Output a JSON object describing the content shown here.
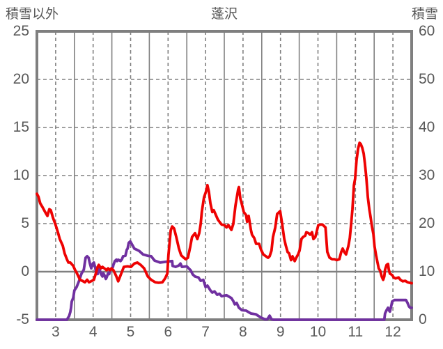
{
  "title": "蓬沢",
  "left_axis_label": "積雪以外",
  "right_axis_label": "積雪",
  "colors": {
    "series_other": "#ee0202",
    "series_snow": "#7030a0",
    "grid": "#808080",
    "border": "#7f7f7f",
    "zero_line": "#808080",
    "text": "#595959",
    "background": "#ffffff"
  },
  "chart_data": {
    "type": "line",
    "title": "蓬沢",
    "x_axis": {
      "range": [
        3,
        13
      ],
      "tick_months": [
        3,
        4,
        5,
        6,
        7,
        8,
        9,
        10,
        11,
        12
      ],
      "tick_labels": [
        "3",
        "4",
        "5",
        "6",
        "7",
        "8",
        "9",
        "10",
        "11",
        "12"
      ],
      "solid_gridlines_at_month_starts": [
        4,
        5,
        6,
        7,
        8,
        9,
        10,
        11,
        12
      ],
      "dashed_gridlines_at_mid_months": [
        3.5,
        4.5,
        5.5,
        6.5,
        7.5,
        8.5,
        9.5,
        10.5,
        11.5,
        12.5
      ]
    },
    "left_axis": {
      "label": "積雪以外",
      "range": [
        -5,
        25
      ],
      "tick_step": 5,
      "tick_labels": [
        "25",
        "20",
        "15",
        "10",
        "5",
        "0",
        "-5"
      ],
      "zero_line": true
    },
    "right_axis": {
      "label": "積雪",
      "range": [
        0,
        60
      ],
      "tick_step": 10,
      "tick_labels": [
        "60",
        "50",
        "40",
        "30",
        "20",
        "10",
        "0"
      ]
    },
    "grid": {
      "horizontal_dashed_at_left_values": [
        20,
        15,
        10,
        5
      ],
      "legend": "none"
    },
    "series": [
      {
        "name": "積雪",
        "axis": "right",
        "color": "#7030a0",
        "points": [
          [
            3.0,
            0
          ],
          [
            3.8,
            0
          ],
          [
            3.86,
            0.8
          ],
          [
            3.89,
            1.6
          ],
          [
            3.91,
            2.5
          ],
          [
            3.93,
            3.8
          ],
          [
            3.97,
            4.6
          ],
          [
            4.0,
            6.1
          ],
          [
            4.06,
            6.8
          ],
          [
            4.12,
            8.0
          ],
          [
            4.19,
            9.6
          ],
          [
            4.25,
            10.4
          ],
          [
            4.3,
            12.9
          ],
          [
            4.34,
            13.2
          ],
          [
            4.38,
            12.9
          ],
          [
            4.41,
            11.8
          ],
          [
            4.45,
            10.7
          ],
          [
            4.49,
            11.7
          ],
          [
            4.52,
            11.9
          ],
          [
            4.56,
            10.7
          ],
          [
            4.58,
            9.7
          ],
          [
            4.62,
            9.5
          ],
          [
            4.65,
            11.0
          ],
          [
            4.71,
            9.5
          ],
          [
            4.75,
            9.0
          ],
          [
            4.77,
            9.7
          ],
          [
            4.8,
            9.3
          ],
          [
            4.84,
            8.5
          ],
          [
            4.86,
            8.8
          ],
          [
            4.9,
            9.7
          ],
          [
            4.93,
            9.5
          ],
          [
            4.95,
            10.3
          ],
          [
            4.99,
            10.7
          ],
          [
            5.03,
            11.0
          ],
          [
            5.04,
            11.4
          ],
          [
            5.08,
            12.2
          ],
          [
            5.12,
            12.5
          ],
          [
            5.14,
            12.2
          ],
          [
            5.17,
            12.5
          ],
          [
            5.23,
            12.2
          ],
          [
            5.27,
            12.6
          ],
          [
            5.3,
            13.2
          ],
          [
            5.36,
            13.3
          ],
          [
            5.4,
            14.6
          ],
          [
            5.42,
            14.8
          ],
          [
            5.45,
            16.0
          ],
          [
            5.49,
            16.3
          ],
          [
            5.55,
            15.5
          ],
          [
            5.6,
            14.8
          ],
          [
            5.68,
            14.5
          ],
          [
            5.73,
            14.3
          ],
          [
            5.83,
            13.6
          ],
          [
            5.96,
            13.3
          ],
          [
            6.05,
            13.2
          ],
          [
            6.14,
            12.3
          ],
          [
            6.29,
            11.9
          ],
          [
            6.48,
            12.1
          ],
          [
            6.61,
            12.2
          ],
          [
            6.62,
            11.2
          ],
          [
            6.7,
            11.0
          ],
          [
            6.79,
            11.3
          ],
          [
            6.83,
            11.7
          ],
          [
            6.87,
            11.0
          ],
          [
            7.0,
            11.1
          ],
          [
            7.05,
            10.7
          ],
          [
            7.1,
            10.3
          ],
          [
            7.16,
            9.4
          ],
          [
            7.22,
            9.0
          ],
          [
            7.31,
            8.8
          ],
          [
            7.37,
            8.1
          ],
          [
            7.44,
            8.3
          ],
          [
            7.5,
            6.8
          ],
          [
            7.55,
            7.1
          ],
          [
            7.63,
            6.1
          ],
          [
            7.68,
            5.65
          ],
          [
            7.74,
            5.9
          ],
          [
            7.81,
            5.2
          ],
          [
            7.87,
            5.4
          ],
          [
            7.93,
            4.9
          ],
          [
            8.06,
            5.1
          ],
          [
            8.19,
            4.5
          ],
          [
            8.24,
            3.9
          ],
          [
            8.28,
            3.2
          ],
          [
            8.33,
            3.5
          ],
          [
            8.39,
            2.5
          ],
          [
            8.47,
            2.0
          ],
          [
            8.58,
            1.9
          ],
          [
            8.71,
            1.3
          ],
          [
            8.84,
            1.15
          ],
          [
            8.95,
            0.6
          ],
          [
            9.02,
            0.3
          ],
          [
            9.08,
            0.1
          ],
          [
            9.15,
            0.1
          ],
          [
            9.21,
            0.85
          ],
          [
            9.26,
            0.1
          ],
          [
            9.32,
            0
          ],
          [
            12.27,
            0
          ],
          [
            12.29,
            1.3
          ],
          [
            12.33,
            2.0
          ],
          [
            12.37,
            2.5
          ],
          [
            12.39,
            2.0
          ],
          [
            12.42,
            1.7
          ],
          [
            12.46,
            3.0
          ],
          [
            12.48,
            3.8
          ],
          [
            12.54,
            4.1
          ],
          [
            12.7,
            4.1
          ],
          [
            12.85,
            4.1
          ],
          [
            12.89,
            3.5
          ],
          [
            12.93,
            2.75
          ],
          [
            12.96,
            2.5
          ],
          [
            13.0,
            2.5
          ]
        ]
      },
      {
        "name": "積雪以外",
        "axis": "left",
        "color": "#ee0202",
        "points": [
          [
            3.0,
            8.1
          ],
          [
            3.04,
            7.8
          ],
          [
            3.09,
            7.1
          ],
          [
            3.15,
            6.7
          ],
          [
            3.22,
            6.2
          ],
          [
            3.28,
            5.8
          ],
          [
            3.33,
            6.5
          ],
          [
            3.37,
            6.4
          ],
          [
            3.43,
            5.6
          ],
          [
            3.5,
            4.85
          ],
          [
            3.56,
            4.1
          ],
          [
            3.61,
            3.4
          ],
          [
            3.69,
            2.7
          ],
          [
            3.74,
            1.9
          ],
          [
            3.8,
            1.3
          ],
          [
            3.84,
            0.95
          ],
          [
            3.89,
            0.95
          ],
          [
            3.97,
            0.6
          ],
          [
            4.02,
            0.15
          ],
          [
            4.06,
            -0.1
          ],
          [
            4.15,
            -0.85
          ],
          [
            4.21,
            -0.95
          ],
          [
            4.28,
            -1.1
          ],
          [
            4.34,
            -0.85
          ],
          [
            4.39,
            -1.1
          ],
          [
            4.47,
            -0.95
          ],
          [
            4.52,
            -0.85
          ],
          [
            4.56,
            -0.35
          ],
          [
            4.62,
            0.5
          ],
          [
            4.65,
            0.7
          ],
          [
            4.71,
            0.35
          ],
          [
            4.75,
            0.5
          ],
          [
            4.8,
            0.35
          ],
          [
            4.86,
            0.15
          ],
          [
            4.9,
            0.35
          ],
          [
            4.95,
            0.15
          ],
          [
            4.99,
            0.35
          ],
          [
            5.04,
            0.15
          ],
          [
            5.08,
            -0.15
          ],
          [
            5.12,
            -0.5
          ],
          [
            5.17,
            -1.0
          ],
          [
            5.21,
            -0.6
          ],
          [
            5.27,
            0.0
          ],
          [
            5.32,
            0.5
          ],
          [
            5.42,
            0.55
          ],
          [
            5.51,
            0.5
          ],
          [
            5.6,
            0.85
          ],
          [
            5.68,
            0.95
          ],
          [
            5.77,
            0.7
          ],
          [
            5.86,
            0.35
          ],
          [
            5.96,
            -0.5
          ],
          [
            6.05,
            -0.85
          ],
          [
            6.16,
            -1.1
          ],
          [
            6.25,
            -1.15
          ],
          [
            6.35,
            -1.1
          ],
          [
            6.42,
            -0.7
          ],
          [
            6.48,
            -0.2
          ],
          [
            6.51,
            1.7
          ],
          [
            6.57,
            4.3
          ],
          [
            6.61,
            4.7
          ],
          [
            6.66,
            4.5
          ],
          [
            6.72,
            3.6
          ],
          [
            6.79,
            2.4
          ],
          [
            6.85,
            1.7
          ],
          [
            6.92,
            1.45
          ],
          [
            6.97,
            1.3
          ],
          [
            7.03,
            1.45
          ],
          [
            7.09,
            2.55
          ],
          [
            7.14,
            3.6
          ],
          [
            7.22,
            4.0
          ],
          [
            7.28,
            3.4
          ],
          [
            7.33,
            4.0
          ],
          [
            7.37,
            4.95
          ],
          [
            7.4,
            6.2
          ],
          [
            7.46,
            7.75
          ],
          [
            7.51,
            8.3
          ],
          [
            7.55,
            9.0
          ],
          [
            7.59,
            8.3
          ],
          [
            7.63,
            7.1
          ],
          [
            7.68,
            6.2
          ],
          [
            7.72,
            6.4
          ],
          [
            7.83,
            5.4
          ],
          [
            7.93,
            4.9
          ],
          [
            8.0,
            4.85
          ],
          [
            8.06,
            4.6
          ],
          [
            8.11,
            4.85
          ],
          [
            8.19,
            4.35
          ],
          [
            8.24,
            4.95
          ],
          [
            8.3,
            6.9
          ],
          [
            8.37,
            8.55
          ],
          [
            8.39,
            8.8
          ],
          [
            8.43,
            7.6
          ],
          [
            8.47,
            7.0
          ],
          [
            8.52,
            6.2
          ],
          [
            8.58,
            5.9
          ],
          [
            8.61,
            5.2
          ],
          [
            8.65,
            5.8
          ],
          [
            8.71,
            4.35
          ],
          [
            8.74,
            3.85
          ],
          [
            8.8,
            3.5
          ],
          [
            8.85,
            2.9
          ],
          [
            8.93,
            2.9
          ],
          [
            8.98,
            2.3
          ],
          [
            9.04,
            1.8
          ],
          [
            9.11,
            1.6
          ],
          [
            9.17,
            1.45
          ],
          [
            9.21,
            1.6
          ],
          [
            9.26,
            2.2
          ],
          [
            9.3,
            3.6
          ],
          [
            9.36,
            4.6
          ],
          [
            9.41,
            6.0
          ],
          [
            9.49,
            6.3
          ],
          [
            9.54,
            5.05
          ],
          [
            9.6,
            3.4
          ],
          [
            9.64,
            2.75
          ],
          [
            9.69,
            2.05
          ],
          [
            9.73,
            1.9
          ],
          [
            9.78,
            1.2
          ],
          [
            9.82,
            1.6
          ],
          [
            9.88,
            1.1
          ],
          [
            9.92,
            1.45
          ],
          [
            9.97,
            1.8
          ],
          [
            10.01,
            2.2
          ],
          [
            10.06,
            3.4
          ],
          [
            10.1,
            3.6
          ],
          [
            10.16,
            3.75
          ],
          [
            10.19,
            4.1
          ],
          [
            10.25,
            4.0
          ],
          [
            10.29,
            3.85
          ],
          [
            10.34,
            4.1
          ],
          [
            10.38,
            3.4
          ],
          [
            10.43,
            3.6
          ],
          [
            10.51,
            4.85
          ],
          [
            10.56,
            4.9
          ],
          [
            10.62,
            4.9
          ],
          [
            10.7,
            4.6
          ],
          [
            10.75,
            2.05
          ],
          [
            10.81,
            1.45
          ],
          [
            10.88,
            1.3
          ],
          [
            10.94,
            1.3
          ],
          [
            11.0,
            1.2
          ],
          [
            11.07,
            1.3
          ],
          [
            11.12,
            2.05
          ],
          [
            11.16,
            2.4
          ],
          [
            11.2,
            2.05
          ],
          [
            11.25,
            1.8
          ],
          [
            11.31,
            2.65
          ],
          [
            11.35,
            3.5
          ],
          [
            11.38,
            4.7
          ],
          [
            11.42,
            6.5
          ],
          [
            11.46,
            9.0
          ],
          [
            11.49,
            9.65
          ],
          [
            11.53,
            11.6
          ],
          [
            11.57,
            12.8
          ],
          [
            11.61,
            13.4
          ],
          [
            11.64,
            13.3
          ],
          [
            11.68,
            12.9
          ],
          [
            11.72,
            12.3
          ],
          [
            11.75,
            11.3
          ],
          [
            11.79,
            9.8
          ],
          [
            11.83,
            7.75
          ],
          [
            11.87,
            6.5
          ],
          [
            11.9,
            5.8
          ],
          [
            11.94,
            4.7
          ],
          [
            11.98,
            3.9
          ],
          [
            12.01,
            2.65
          ],
          [
            12.05,
            1.7
          ],
          [
            12.09,
            0.95
          ],
          [
            12.12,
            0.35
          ],
          [
            12.16,
            0.1
          ],
          [
            12.2,
            -0.5
          ],
          [
            12.24,
            -0.85
          ],
          [
            12.27,
            -0.5
          ],
          [
            12.29,
            0.2
          ],
          [
            12.33,
            0.7
          ],
          [
            12.37,
            0.8
          ],
          [
            12.39,
            0.2
          ],
          [
            12.42,
            -0.2
          ],
          [
            12.48,
            -0.35
          ],
          [
            12.52,
            -0.6
          ],
          [
            12.57,
            -0.7
          ],
          [
            12.65,
            -0.6
          ],
          [
            12.7,
            -0.85
          ],
          [
            12.76,
            -1.0
          ],
          [
            12.83,
            -0.95
          ],
          [
            12.89,
            -1.1
          ],
          [
            12.94,
            -1.15
          ],
          [
            13.0,
            -1.2
          ]
        ]
      }
    ]
  }
}
